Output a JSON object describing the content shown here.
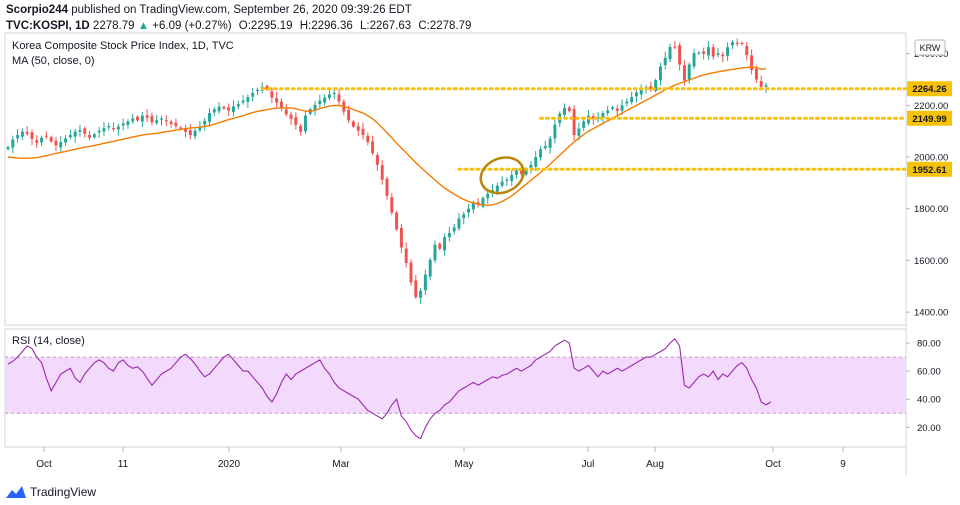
{
  "header": {
    "publisher": "Scorpio244",
    "published_text": "published on TradingView.com, September 26, 2020 09:39:26 EDT",
    "symbol": "TVC:KOSPI, 1D",
    "last": "2278.79",
    "change": "+6.09 (+0.27%)",
    "open_label": "O:",
    "open": "2295.19",
    "high_label": "H:",
    "high": "2296.36",
    "low_label": "L:",
    "low": "2267.63",
    "close_label": "C:",
    "close": "2278.79"
  },
  "colors": {
    "up": "#26a69a",
    "down": "#ef5350",
    "ma": "#f57c00",
    "level": "#f9c20a",
    "rsi_line": "#9c27b0",
    "rsi_band": "#f3d9fb",
    "circle": "#b8860b",
    "brand": "#2962ff"
  },
  "footer": {
    "brand": "TradingView"
  },
  "chart_data": [
    {
      "type": "candlestick",
      "title": "Korea Composite Stock Price Index, 1D, TVC",
      "subtitle": "MA (50, close, 0)",
      "currency": "KRW",
      "ylim": [
        1350,
        2480
      ],
      "yticks": [
        "1400.00",
        "1600.00",
        "1800.00",
        "2000.00",
        "2200.00",
        "2400.00"
      ],
      "x_ticks": [
        "Oct",
        "11",
        "2020",
        "Mar",
        "May",
        "Jul",
        "Aug",
        "Oct",
        "9"
      ],
      "levels": [
        {
          "value": 2264.26,
          "label": "2264.26",
          "from_index": 53
        },
        {
          "value": 2149.99,
          "label": "2149.99",
          "from_index": 111
        },
        {
          "value": 1952.61,
          "label": "1952.61",
          "from_index": 94
        }
      ],
      "annotation": {
        "type": "ellipse",
        "index": 103,
        "value": 1952.61
      },
      "closes": [
        2038,
        2068,
        2085,
        2098,
        2090,
        2070,
        2055,
        2075,
        2080,
        2060,
        2045,
        2058,
        2072,
        2085,
        2098,
        2105,
        2090,
        2075,
        2088,
        2102,
        2112,
        2120,
        2108,
        2118,
        2130,
        2138,
        2150,
        2142,
        2160,
        2152,
        2135,
        2142,
        2150,
        2138,
        2128,
        2120,
        2110,
        2098,
        2085,
        2102,
        2118,
        2140,
        2170,
        2185,
        2195,
        2188,
        2180,
        2196,
        2205,
        2218,
        2232,
        2248,
        2260,
        2272,
        2262,
        2230,
        2210,
        2190,
        2165,
        2148,
        2125,
        2098,
        2160,
        2185,
        2202,
        2218,
        2230,
        2242,
        2248,
        2215,
        2176,
        2142,
        2118,
        2102,
        2085,
        2058,
        2015,
        1970,
        1912,
        1850,
        1785,
        1720,
        1650,
        1590,
        1515,
        1458,
        1482,
        1545,
        1602,
        1660,
        1645,
        1690,
        1706,
        1728,
        1762,
        1778,
        1800,
        1822,
        1815,
        1842,
        1858,
        1872,
        1889,
        1905,
        1912,
        1930,
        1948,
        1935,
        1955,
        1970,
        2000,
        2030,
        2042,
        2072,
        2125,
        2168,
        2190,
        2178,
        2085,
        2110,
        2138,
        2160,
        2148,
        2155,
        2170,
        2180,
        2192,
        2178,
        2200,
        2215,
        2232,
        2250,
        2262,
        2270,
        2262,
        2298,
        2350,
        2384,
        2426,
        2425,
        2358,
        2296,
        2358,
        2402,
        2404,
        2399,
        2425,
        2389,
        2401,
        2390,
        2425,
        2445,
        2438,
        2438,
        2395,
        2337,
        2300,
        2272,
        2278
      ],
      "ma": [
        2000,
        1998,
        1996,
        1995,
        1995,
        1996,
        1998,
        2001,
        2005,
        2010,
        2014,
        2018,
        2022,
        2026,
        2030,
        2034,
        2038,
        2041,
        2045,
        2049,
        2053,
        2057,
        2061,
        2065,
        2069,
        2073,
        2077,
        2081,
        2085,
        2088,
        2090,
        2092,
        2095,
        2098,
        2101,
        2104,
        2107,
        2110,
        2112,
        2114,
        2116,
        2118,
        2122,
        2127,
        2133,
        2139,
        2145,
        2150,
        2155,
        2160,
        2166,
        2172,
        2177,
        2180,
        2183,
        2187,
        2189,
        2190,
        2190,
        2190,
        2187,
        2182,
        2178,
        2177,
        2181,
        2188,
        2193,
        2197,
        2200,
        2199,
        2196,
        2190,
        2184,
        2177,
        2170,
        2160,
        2148,
        2132,
        2113,
        2094,
        2074,
        2053,
        2035,
        2016,
        1998,
        1978,
        1961,
        1944,
        1927,
        1911,
        1895,
        1880,
        1868,
        1856,
        1845,
        1836,
        1828,
        1823,
        1818,
        1815,
        1813,
        1815,
        1820,
        1828,
        1838,
        1850,
        1864,
        1880,
        1895,
        1910,
        1925,
        1940,
        1955,
        1972,
        1990,
        2007,
        2025,
        2042,
        2058,
        2073,
        2087,
        2100,
        2110,
        2120,
        2130,
        2140,
        2150,
        2160,
        2170,
        2180,
        2190,
        2200,
        2210,
        2220,
        2230,
        2240,
        2250,
        2260,
        2270,
        2278,
        2285,
        2292,
        2298,
        2305,
        2312,
        2318,
        2322,
        2326,
        2330,
        2333,
        2336,
        2339,
        2342,
        2345,
        2347,
        2349,
        2346,
        2340,
        2342
      ],
      "ma_start_index": 0
    },
    {
      "type": "line",
      "title": "RSI (14, close)",
      "ylim": [
        6,
        90
      ],
      "yticks": [
        "20.00",
        "40.00",
        "60.00",
        "80.00"
      ],
      "band": [
        30,
        70
      ],
      "values": [
        65,
        67,
        70,
        74,
        78,
        76,
        70,
        66,
        55,
        46,
        52,
        58,
        60,
        62,
        55,
        52,
        58,
        62,
        66,
        68,
        66,
        62,
        60,
        66,
        68,
        64,
        62,
        63,
        60,
        55,
        50,
        54,
        58,
        60,
        62,
        66,
        70,
        72,
        69,
        65,
        60,
        56,
        58,
        62,
        66,
        70,
        72,
        68,
        64,
        60,
        60,
        56,
        52,
        48,
        42,
        38,
        44,
        52,
        58,
        54,
        58,
        60,
        62,
        64,
        66,
        68,
        62,
        58,
        52,
        48,
        46,
        44,
        42,
        40,
        36,
        32,
        30,
        28,
        26,
        30,
        36,
        40,
        28,
        24,
        18,
        14,
        12,
        20,
        26,
        30,
        32,
        36,
        38,
        42,
        46,
        48,
        50,
        52,
        50,
        52,
        54,
        56,
        55,
        57,
        58,
        60,
        62,
        60,
        62,
        64,
        68,
        70,
        72,
        74,
        78,
        80,
        82,
        80,
        62,
        60,
        62,
        64,
        60,
        56,
        60,
        58,
        60,
        62,
        60,
        62,
        64,
        66,
        68,
        70,
        70,
        72,
        74,
        76,
        80,
        83,
        78,
        50,
        48,
        52,
        56,
        58,
        56,
        60,
        54,
        58,
        56,
        60,
        64,
        66,
        62,
        54,
        48,
        38,
        36,
        38
      ]
    }
  ]
}
